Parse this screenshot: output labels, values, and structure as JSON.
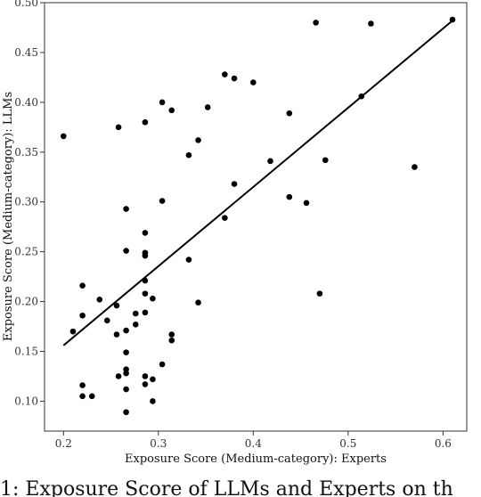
{
  "chart_data": {
    "type": "scatter",
    "xlabel": "Exposure Score (Medium-category): Experts",
    "ylabel": "Exposure Score (Medium-category): LLMs",
    "xlim": [
      0.18,
      0.625
    ],
    "ylim": [
      0.07,
      0.5
    ],
    "xticks": [
      0.2,
      0.3,
      0.4,
      0.5,
      0.6
    ],
    "xtick_labels": [
      "0.2",
      "0.3",
      "0.4",
      "0.5",
      "0.6"
    ],
    "yticks": [
      0.1,
      0.15,
      0.2,
      0.25,
      0.3,
      0.35,
      0.4,
      0.45,
      0.5
    ],
    "ytick_labels": [
      "0.10",
      "0.15",
      "0.20",
      "0.25",
      "0.30",
      "0.35",
      "0.40",
      "0.45",
      "0.50"
    ],
    "grid": false,
    "points": [
      [
        0.2,
        0.366
      ],
      [
        0.21,
        0.17
      ],
      [
        0.22,
        0.216
      ],
      [
        0.22,
        0.186
      ],
      [
        0.22,
        0.116
      ],
      [
        0.22,
        0.105
      ],
      [
        0.23,
        0.105
      ],
      [
        0.238,
        0.202
      ],
      [
        0.246,
        0.181
      ],
      [
        0.256,
        0.196
      ],
      [
        0.256,
        0.167
      ],
      [
        0.258,
        0.125
      ],
      [
        0.258,
        0.375
      ],
      [
        0.266,
        0.293
      ],
      [
        0.266,
        0.251
      ],
      [
        0.266,
        0.171
      ],
      [
        0.266,
        0.149
      ],
      [
        0.266,
        0.132
      ],
      [
        0.266,
        0.128
      ],
      [
        0.266,
        0.112
      ],
      [
        0.266,
        0.089
      ],
      [
        0.276,
        0.177
      ],
      [
        0.276,
        0.188
      ],
      [
        0.286,
        0.38
      ],
      [
        0.286,
        0.269
      ],
      [
        0.286,
        0.249
      ],
      [
        0.286,
        0.246
      ],
      [
        0.286,
        0.221
      ],
      [
        0.286,
        0.208
      ],
      [
        0.286,
        0.189
      ],
      [
        0.286,
        0.125
      ],
      [
        0.286,
        0.117
      ],
      [
        0.294,
        0.203
      ],
      [
        0.294,
        0.122
      ],
      [
        0.294,
        0.1
      ],
      [
        0.304,
        0.4
      ],
      [
        0.304,
        0.301
      ],
      [
        0.304,
        0.137
      ],
      [
        0.314,
        0.392
      ],
      [
        0.314,
        0.167
      ],
      [
        0.314,
        0.161
      ],
      [
        0.332,
        0.347
      ],
      [
        0.332,
        0.242
      ],
      [
        0.342,
        0.362
      ],
      [
        0.342,
        0.199
      ],
      [
        0.352,
        0.395
      ],
      [
        0.37,
        0.428
      ],
      [
        0.37,
        0.284
      ],
      [
        0.38,
        0.424
      ],
      [
        0.38,
        0.318
      ],
      [
        0.4,
        0.42
      ],
      [
        0.418,
        0.341
      ],
      [
        0.438,
        0.389
      ],
      [
        0.438,
        0.305
      ],
      [
        0.456,
        0.299
      ],
      [
        0.466,
        0.48
      ],
      [
        0.47,
        0.208
      ],
      [
        0.476,
        0.342
      ],
      [
        0.514,
        0.406
      ],
      [
        0.524,
        0.479
      ],
      [
        0.57,
        0.335
      ],
      [
        0.61,
        0.483
      ]
    ],
    "fit_line": {
      "x": [
        0.2,
        0.61
      ],
      "y": [
        0.156,
        0.482
      ]
    },
    "point_color": "#000000",
    "line_color": "#000000"
  },
  "caption": "1: Exposure Score of LLMs and Experts on th"
}
